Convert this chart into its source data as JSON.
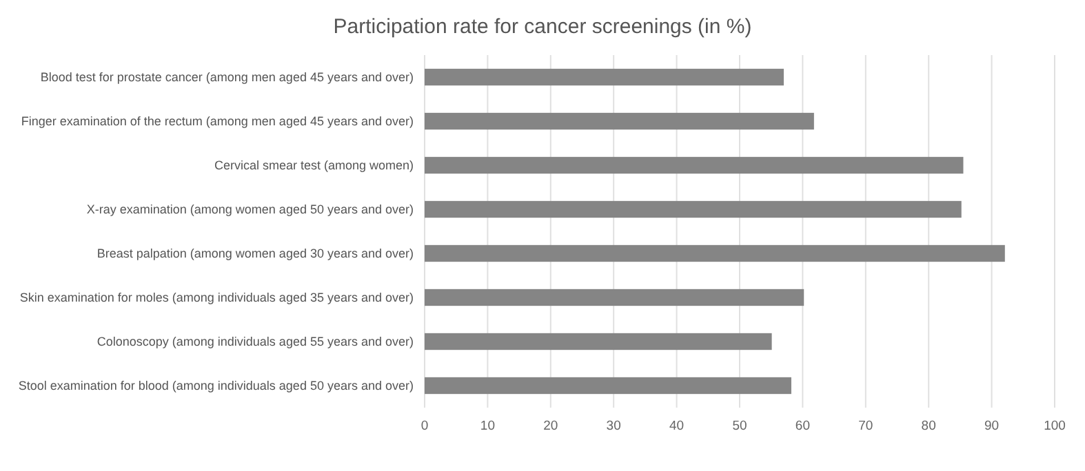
{
  "chart_data": {
    "type": "bar",
    "orientation": "horizontal",
    "title": "Participation rate for cancer screenings (in %)",
    "categories": [
      "Blood test for prostate cancer (among men aged 45 years and over)",
      "Finger examination of the rectum (among men aged 45 years and over)",
      "Cervical smear test (among women)",
      "X-ray examination (among women aged 50 years and over)",
      "Breast palpation (among women aged 30 years and over)",
      "Skin examination for moles (among individuals aged 35 years and over)",
      "Colonoscopy (among individuals aged 55 years and over)",
      "Stool examination for blood (among individuals aged 50 years and over)"
    ],
    "values": [
      57.0,
      61.8,
      85.5,
      85.2,
      92.1,
      60.2,
      55.1,
      58.2
    ],
    "color": "#858585",
    "xlim": [
      0,
      100
    ],
    "xticks": [
      0,
      10,
      20,
      30,
      40,
      50,
      60,
      70,
      80,
      90,
      100
    ],
    "grid": "x"
  }
}
